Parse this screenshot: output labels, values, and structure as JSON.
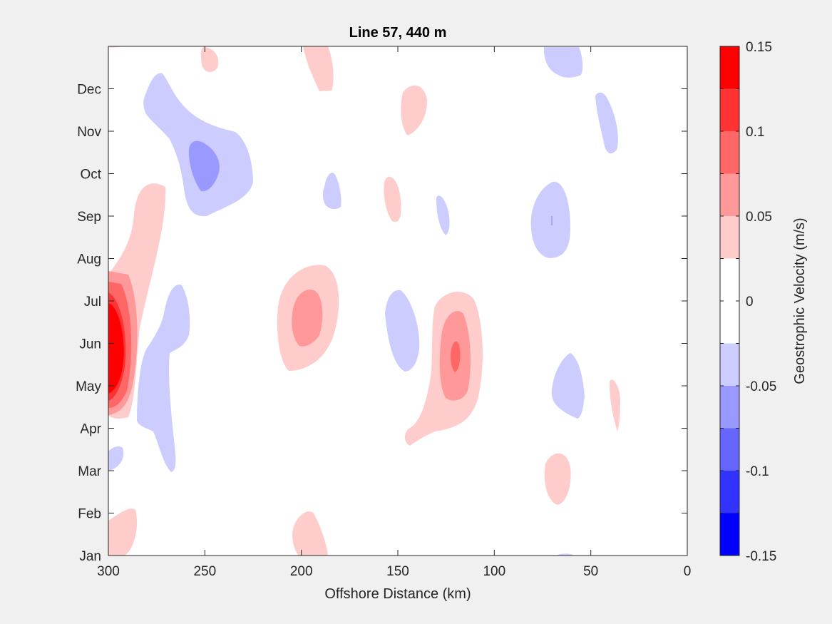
{
  "chart_data": {
    "type": "heatmap",
    "subtype": "filled-contour",
    "title": "Line 57, 440 m",
    "xlabel": "Offshore Distance (km)",
    "ylabel": "",
    "xlim": [
      300,
      0
    ],
    "x_reversed": true,
    "x_ticks": [
      300,
      250,
      200,
      150,
      100,
      50,
      0
    ],
    "ylim": [
      0,
      12
    ],
    "y_ticks": [
      {
        "value": 0,
        "label": "Jan"
      },
      {
        "value": 1,
        "label": "Feb"
      },
      {
        "value": 2,
        "label": "Mar"
      },
      {
        "value": 3,
        "label": "Apr"
      },
      {
        "value": 4,
        "label": "May"
      },
      {
        "value": 5,
        "label": "Jun"
      },
      {
        "value": 6,
        "label": "Jul"
      },
      {
        "value": 7,
        "label": "Aug"
      },
      {
        "value": 8,
        "label": "Sep"
      },
      {
        "value": 9,
        "label": "Oct"
      },
      {
        "value": 10,
        "label": "Nov"
      },
      {
        "value": 11,
        "label": "Dec"
      }
    ],
    "grid": false,
    "colorbar": {
      "label": "Geostrophic Velocity (m/s)",
      "range": [
        -0.15,
        0.15
      ],
      "tick_values": [
        0.15,
        0.1,
        0.05,
        0,
        -0.05,
        -0.1,
        -0.15
      ],
      "tick_labels": [
        "0.15",
        "0.1",
        "0.05",
        "0",
        "-0.05",
        "-0.1",
        "-0.15"
      ],
      "levels": [
        {
          "min": 0.125,
          "max": 0.15,
          "color": "#ff0000"
        },
        {
          "min": 0.1,
          "max": 0.125,
          "color": "#ff3333"
        },
        {
          "min": 0.075,
          "max": 0.1,
          "color": "#ff6666"
        },
        {
          "min": 0.05,
          "max": 0.075,
          "color": "#ff9999"
        },
        {
          "min": 0.025,
          "max": 0.05,
          "color": "#ffcccc"
        },
        {
          "min": 0,
          "max": 0.025,
          "color": "#ffffff"
        },
        {
          "min": -0.025,
          "max": 0,
          "color": "#ffffff"
        },
        {
          "min": -0.05,
          "max": -0.025,
          "color": "#ccccff"
        },
        {
          "min": -0.075,
          "max": -0.05,
          "color": "#9999ff"
        },
        {
          "min": -0.1,
          "max": -0.075,
          "color": "#6666ff"
        },
        {
          "min": -0.125,
          "max": -0.1,
          "color": "#3333ff"
        },
        {
          "min": -0.15,
          "max": -0.125,
          "color": "#0000ff"
        }
      ]
    },
    "features": [
      {
        "x": 297,
        "y": 4.9,
        "velocity": 0.14
      },
      {
        "x": 197,
        "y": 5.5,
        "velocity": 0.07
      },
      {
        "x": 120,
        "y": 4.8,
        "velocity": 0.11
      },
      {
        "x": 245,
        "y": 9.2,
        "velocity": -0.07
      },
      {
        "x": 148,
        "y": 5.2,
        "velocity": -0.04
      },
      {
        "x": 71,
        "y": 7.9,
        "velocity": -0.045
      },
      {
        "x": 63,
        "y": 4.3,
        "velocity": -0.04
      },
      {
        "x": 254,
        "y": 5.3,
        "velocity": -0.035
      },
      {
        "x": 125,
        "y": 7.8,
        "velocity": -0.035
      },
      {
        "x": 134,
        "y": 10.9,
        "velocity": 0.035
      },
      {
        "x": 68,
        "y": 1.8,
        "velocity": 0.035
      }
    ]
  }
}
